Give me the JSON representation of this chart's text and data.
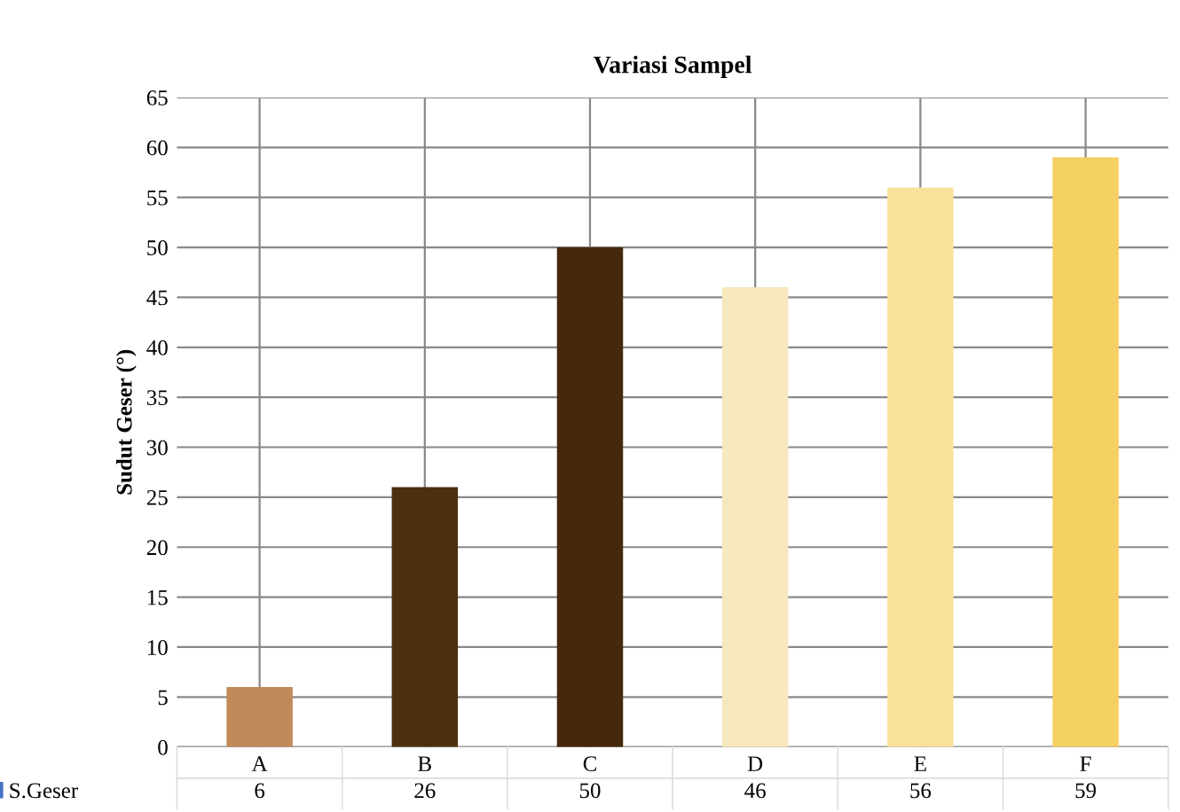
{
  "chart_data": {
    "type": "bar",
    "title": "Variasi Sampel",
    "ylabel": "Sudut Geser (°)",
    "categories": [
      "A",
      "B",
      "C",
      "D",
      "E",
      "F"
    ],
    "series": [
      {
        "name": "S.Geser",
        "color": "#4472c4",
        "colors": [
          "#c08a5a",
          "#4a300c",
          "#45290a",
          "#f7e8bd",
          "#f8e29a",
          "#f5d062"
        ],
        "values": [
          6,
          26,
          50,
          46,
          56,
          59
        ]
      }
    ],
    "ylim": [
      0,
      65
    ],
    "yticks": [
      0,
      5,
      10,
      15,
      20,
      25,
      30,
      35,
      40,
      45,
      50,
      55,
      60,
      65
    ],
    "grid": true,
    "legend": "bottom",
    "data_labels": true
  }
}
